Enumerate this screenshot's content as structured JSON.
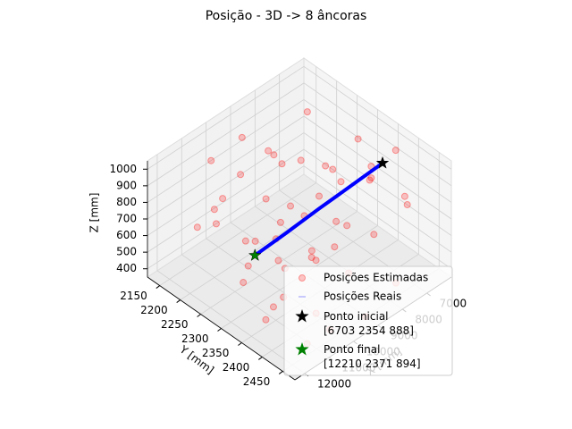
{
  "chart_data": {
    "type": "scatter3d",
    "title": "Posição - 3D -> 8 âncoras",
    "xlabel": "X [mm]",
    "ylabel": "Y [mm]",
    "zlabel": "Z [mm]",
    "xlim": [
      6000,
      12400
    ],
    "ylim": [
      2120,
      2480
    ],
    "zlim": [
      350,
      1050
    ],
    "xticks": [
      7000,
      8000,
      9000,
      10000,
      11000,
      12000
    ],
    "yticks": [
      2150,
      2200,
      2250,
      2300,
      2350,
      2400,
      2450
    ],
    "zticks": [
      400,
      500,
      600,
      700,
      800,
      900,
      1000
    ],
    "grid": true,
    "series": [
      {
        "name": "Posições Estimadas",
        "kind": "points",
        "color": "#ff0000",
        "x": [
          6800,
          6900,
          7000,
          7100,
          7200,
          7300,
          7500,
          7600,
          7800,
          7900,
          8000,
          8200,
          8300,
          8500,
          8600,
          8800,
          9000,
          9100,
          9300,
          9400,
          9600,
          9700,
          9900,
          10000,
          10200,
          10400,
          10500,
          10700,
          10900,
          11000,
          11200,
          11400,
          11500,
          11700,
          11800,
          12000,
          12100,
          12200,
          12300,
          7400,
          8100,
          9500,
          10800,
          11900,
          6600,
          9200,
          10300,
          8700,
          11100,
          12250
        ],
        "y": [
          2300,
          2420,
          2250,
          2350,
          2200,
          2450,
          2300,
          2380,
          2280,
          2160,
          2400,
          2330,
          2250,
          2440,
          2350,
          2200,
          2300,
          2410,
          2260,
          2360,
          2180,
          2450,
          2320,
          2240,
          2390,
          2290,
          2170,
          2430,
          2350,
          2220,
          2460,
          2300,
          2380,
          2200,
          2420,
          2330,
          2270,
          2440,
          2360,
          2150,
          2470,
          2480,
          2470,
          2480,
          2380,
          2160,
          2150,
          2300,
          2350,
          2400
        ],
        "z": [
          950,
          820,
          700,
          900,
          980,
          860,
          760,
          930,
          850,
          720,
          990,
          640,
          880,
          780,
          560,
          900,
          700,
          840,
          620,
          960,
          800,
          680,
          880,
          540,
          760,
          920,
          660,
          820,
          700,
          860,
          600,
          780,
          940,
          720,
          860,
          640,
          900,
          760,
          820,
          600,
          500,
          450,
          480,
          520,
          1000,
          950,
          900,
          420,
          440,
          560
        ]
      },
      {
        "name": "Posições Reais",
        "kind": "line",
        "color": "#0000ff",
        "x": [
          6703,
          8080,
          9456,
          10833,
          12210
        ],
        "y": [
          2354,
          2358,
          2362,
          2367,
          2371
        ],
        "z": [
          888,
          889,
          891,
          892,
          894
        ]
      },
      {
        "name": "Ponto inicial\n[6703 2354  888]",
        "kind": "star",
        "color": "#000000",
        "x": [
          6703
        ],
        "y": [
          2354
        ],
        "z": [
          888
        ]
      },
      {
        "name": "Ponto final\n[12210  2371   894]",
        "kind": "star",
        "color": "#008000",
        "x": [
          12210
        ],
        "y": [
          2371
        ],
        "z": [
          894
        ]
      }
    ]
  }
}
